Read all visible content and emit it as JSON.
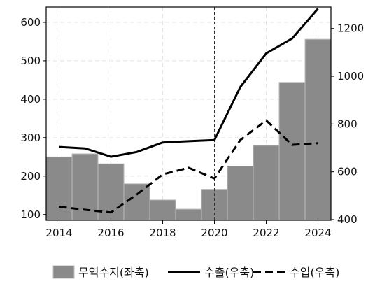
{
  "chart_data": {
    "type": "bar+line",
    "title": "",
    "xlabel": "",
    "ylabel_left": "",
    "ylabel_right": "",
    "categories": [
      "2014",
      "2015",
      "2016",
      "2017",
      "2018",
      "2019",
      "2020",
      "2021",
      "2022",
      "2023",
      "2024"
    ],
    "x_tick_labels": [
      "2014",
      "2016",
      "2018",
      "2020",
      "2022",
      "2024"
    ],
    "y_left_ticks": [
      "100",
      "200",
      "300",
      "400",
      "500",
      "600"
    ],
    "y_right_ticks": [
      "400",
      "600",
      "800",
      "1000",
      "1200"
    ],
    "y_left_range": [
      85,
      640
    ],
    "y_right_range": [
      397,
      1290
    ],
    "reference_line_x": "2020",
    "grid": true,
    "legend_position": "bottom",
    "series": [
      {
        "name": "무역수지(좌축)",
        "kind": "bar",
        "axis": "left",
        "color": "#8a8a8a",
        "values": [
          250,
          258,
          232,
          180,
          138,
          114,
          166,
          226,
          280,
          444,
          556
        ]
      },
      {
        "name": "수출(우축)",
        "kind": "line",
        "axis": "right",
        "style": "solid",
        "color": "#000000",
        "values": [
          704,
          698,
          663,
          683,
          723,
          728,
          733,
          955,
          1096,
          1158,
          1283
        ]
      },
      {
        "name": "수입(우축)",
        "kind": "line",
        "axis": "right",
        "style": "dashed",
        "color": "#000000",
        "values": [
          454,
          441,
          430,
          505,
          589,
          617,
          572,
          733,
          815,
          713,
          720
        ]
      }
    ]
  }
}
